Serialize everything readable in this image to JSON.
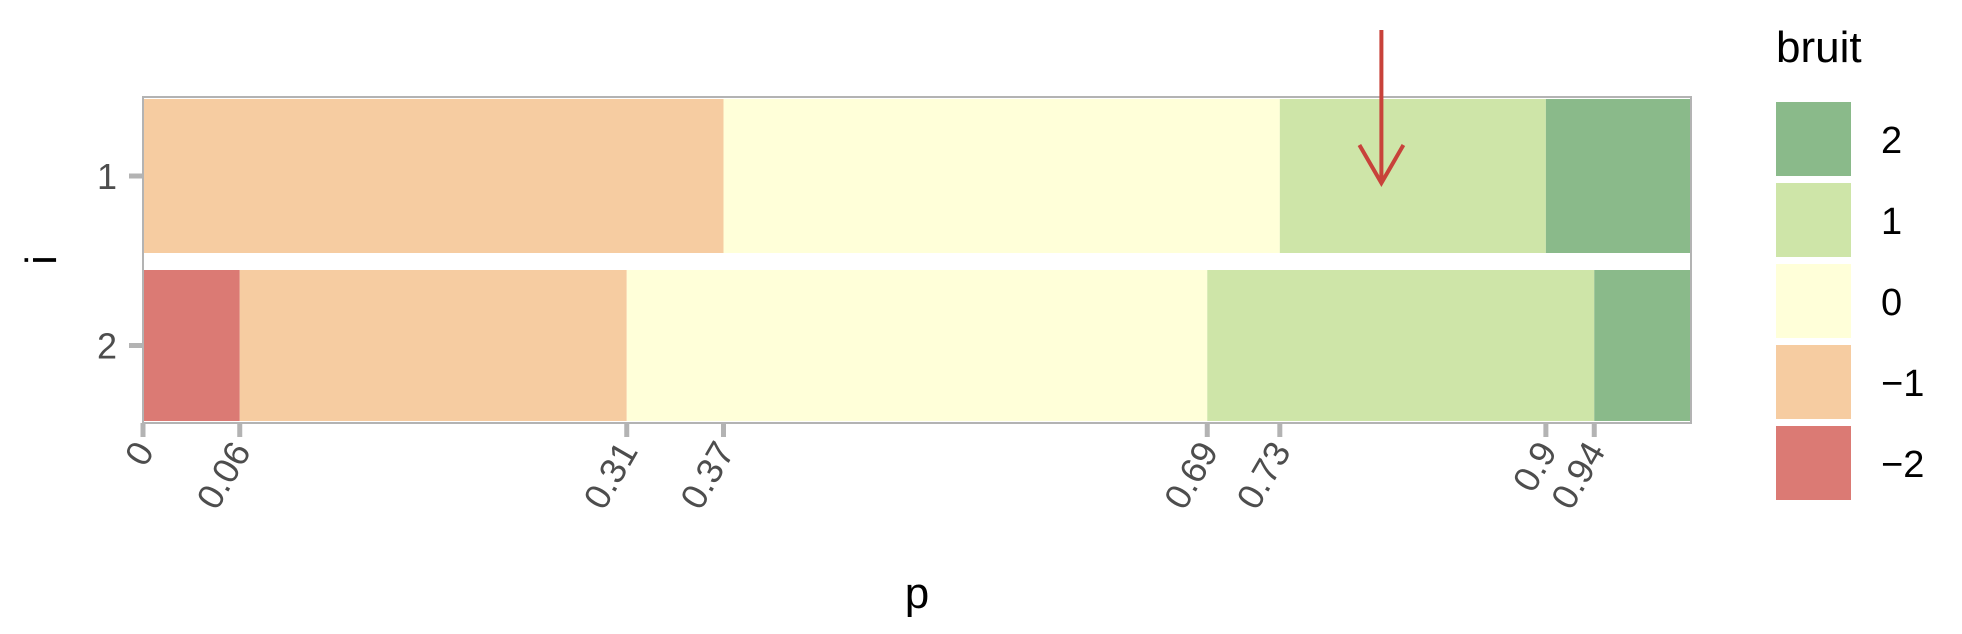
{
  "chart_data": {
    "type": "bar",
    "orientation": "horizontal-stacked",
    "xlabel": "p",
    "ylabel": "i",
    "xlim": [
      0,
      1
    ],
    "grid": false,
    "legend_position": "right",
    "x_ticks": [
      "0",
      "0.06",
      "0.31",
      "0.37",
      "0.69",
      "0.73",
      "0.9",
      "0.94"
    ],
    "x_tick_values": [
      0,
      0.0625,
      0.3125,
      0.375,
      0.6875,
      0.734375,
      0.90625,
      0.9375
    ],
    "rows": [
      {
        "label": "1",
        "segments": [
          {
            "bruit": -1,
            "from": 0,
            "to": 0.375
          },
          {
            "bruit": 0,
            "from": 0.375,
            "to": 0.734375
          },
          {
            "bruit": 1,
            "from": 0.734375,
            "to": 0.90625
          },
          {
            "bruit": 2,
            "from": 0.90625,
            "to": 1
          }
        ]
      },
      {
        "label": "2",
        "segments": [
          {
            "bruit": -2,
            "from": 0,
            "to": 0.0625
          },
          {
            "bruit": -1,
            "from": 0.0625,
            "to": 0.3125
          },
          {
            "bruit": 0,
            "from": 0.3125,
            "to": 0.6875
          },
          {
            "bruit": 1,
            "from": 0.6875,
            "to": 0.9375
          },
          {
            "bruit": 2,
            "from": 0.9375,
            "to": 1
          }
        ]
      }
    ],
    "legend": {
      "title": "bruit",
      "entries": [
        {
          "label": "2",
          "value": 2,
          "color": "#8aba8a"
        },
        {
          "label": "1",
          "value": 1,
          "color": "#cee5a8"
        },
        {
          "label": "0",
          "value": 0,
          "color": "#ffffd9"
        },
        {
          "label": "−1",
          "value": -1,
          "color": "#f6cca1"
        },
        {
          "label": "−2",
          "value": -2,
          "color": "#db7a74"
        }
      ]
    },
    "annotation": {
      "type": "arrow",
      "row": "1",
      "x": 0.8,
      "color": "#c8423a"
    }
  }
}
